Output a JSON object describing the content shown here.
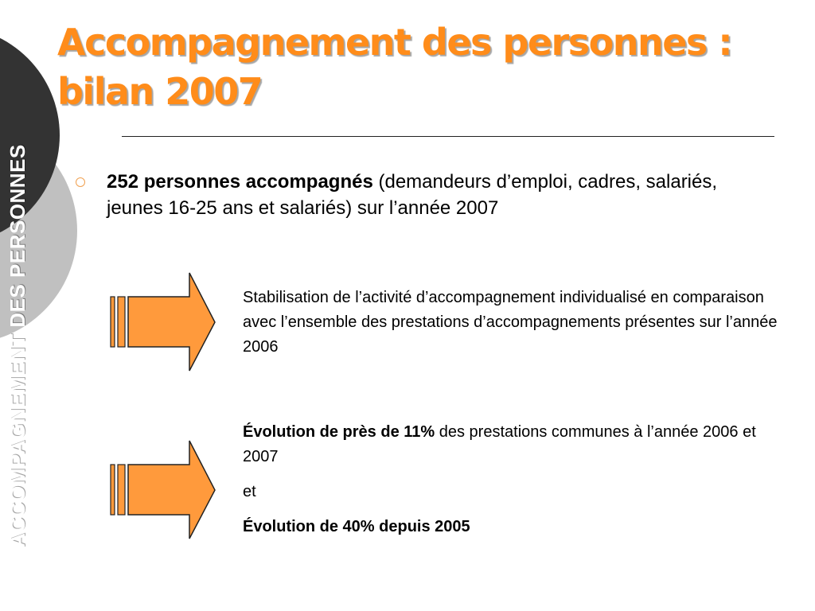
{
  "side_title": "ACCOMPAGNEMENT DES PERSONNES",
  "title": {
    "line1": "Accompagnement des personnes :",
    "line2": "bilan 2007"
  },
  "bullet": {
    "bold": "252 personnes accompagnés",
    "rest": " (demandeurs d’emploi, cadres, salariés, jeunes 16-25 ans et salariés) sur l’année 2007"
  },
  "block1": {
    "text": "Stabilisation de l’activité d’accompagnement individualisé en comparaison avec l’ensemble des prestations d’accompagnements présentes sur l’année 2006"
  },
  "block2": {
    "bold1": "Évolution de près de 11%",
    "rest1": " des prestations communes à l’année 2006 et 2007",
    "connector": "et",
    "bold2": "Évolution de 40% depuis 2005"
  },
  "colors": {
    "accent_orange": "#FF8C1A",
    "arrow_fill": "#FF9A3C",
    "dark_circle": "#333333",
    "light_circle": "#C0C0C0"
  },
  "icons": [
    "striped-right-arrow-icon",
    "striped-right-arrow-icon"
  ]
}
